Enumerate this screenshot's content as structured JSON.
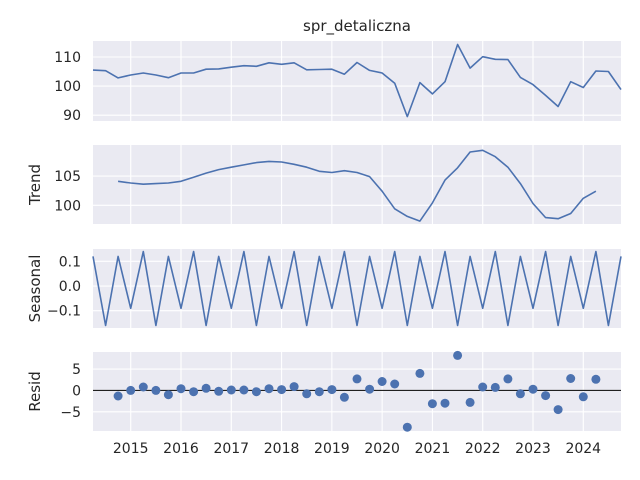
{
  "chart_data": {
    "type": "line",
    "title": "spr_detaliczna",
    "x_tick_labels": [
      "2015",
      "2016",
      "2017",
      "2018",
      "2019",
      "2020",
      "2021",
      "2022",
      "2023",
      "2024"
    ],
    "x_ticks": [
      2015,
      2016,
      2017,
      2018,
      2019,
      2020,
      2021,
      2022,
      2023,
      2024
    ],
    "xlim": [
      2014.25,
      2024.75
    ],
    "x": [
      2014.25,
      2014.5,
      2014.75,
      2015.0,
      2015.25,
      2015.5,
      2015.75,
      2016.0,
      2016.25,
      2016.5,
      2016.75,
      2017.0,
      2017.25,
      2017.5,
      2017.75,
      2018.0,
      2018.25,
      2018.5,
      2018.75,
      2019.0,
      2019.25,
      2019.5,
      2019.75,
      2020.0,
      2020.25,
      2020.5,
      2020.75,
      2021.0,
      2021.25,
      2021.5,
      2021.75,
      2022.0,
      2022.25,
      2022.5,
      2022.75,
      2023.0,
      2023.25,
      2023.5,
      2023.75,
      2024.0,
      2024.25,
      2024.5,
      2024.75
    ],
    "panels": [
      {
        "name": "observed",
        "ylabel": "",
        "kind": "line",
        "ylim": [
          88,
          115.5
        ],
        "yticks": [
          90,
          100,
          110
        ],
        "values": [
          105.5,
          105.3,
          102.8,
          103.8,
          104.5,
          103.8,
          102.9,
          104.5,
          104.5,
          105.8,
          105.9,
          106.5,
          107.0,
          106.8,
          108.0,
          107.5,
          108.0,
          105.6,
          105.7,
          105.8,
          104.1,
          108.1,
          105.4,
          104.5,
          101.0,
          89.5,
          101.2,
          97.3,
          101.5,
          114.3,
          106.2,
          110.1,
          109.2,
          109.1,
          103.0,
          100.5,
          96.8,
          93.0,
          101.5,
          99.5,
          105.2,
          105.0,
          98.8
        ]
      },
      {
        "name": "trend",
        "ylabel": "Trend",
        "kind": "line",
        "ylim": [
          96.8,
          110.3
        ],
        "yticks": [
          100,
          105
        ],
        "values": [
          null,
          null,
          104.1,
          103.8,
          103.6,
          103.7,
          103.8,
          104.1,
          104.8,
          105.5,
          106.1,
          106.5,
          106.9,
          107.3,
          107.5,
          107.4,
          107.0,
          106.5,
          105.8,
          105.6,
          105.9,
          105.6,
          104.9,
          102.4,
          99.4,
          98.1,
          97.3,
          100.4,
          104.3,
          106.4,
          109.1,
          109.4,
          108.3,
          106.5,
          103.7,
          100.3,
          97.9,
          97.7,
          98.6,
          101.2,
          102.4,
          null,
          null
        ]
      },
      {
        "name": "seasonal",
        "ylabel": "Seasonal",
        "kind": "line",
        "ylim": [
          -0.17,
          0.15
        ],
        "yticks": [
          -0.1,
          0.0,
          0.1
        ],
        "tick_labels": [
          "−0.1",
          "0.0",
          "0.1"
        ],
        "values": [
          0.12,
          -0.16,
          0.12,
          -0.09,
          0.14,
          -0.16,
          0.12,
          -0.09,
          0.14,
          -0.16,
          0.12,
          -0.09,
          0.14,
          -0.16,
          0.12,
          -0.09,
          0.14,
          -0.16,
          0.12,
          -0.09,
          0.14,
          -0.16,
          0.12,
          -0.09,
          0.14,
          -0.16,
          0.12,
          -0.09,
          0.14,
          -0.16,
          0.12,
          -0.09,
          0.14,
          -0.16,
          0.12,
          -0.09,
          0.14,
          -0.16,
          0.12,
          -0.09,
          0.14,
          -0.16,
          0.12
        ]
      },
      {
        "name": "resid",
        "ylabel": "Resid",
        "kind": "scatter",
        "ylim": [
          -9.5,
          9.0
        ],
        "yticks": [
          -5,
          0,
          5
        ],
        "tick_labels": [
          "−5",
          "0",
          "5"
        ],
        "baseline": 0,
        "values": [
          null,
          null,
          -1.3,
          0.0,
          0.8,
          0.0,
          -1.0,
          0.4,
          -0.3,
          0.5,
          -0.2,
          0.1,
          0.1,
          -0.3,
          0.4,
          0.2,
          0.9,
          -0.8,
          -0.3,
          0.2,
          -1.6,
          2.7,
          0.3,
          2.1,
          1.5,
          -8.6,
          4.0,
          -3.1,
          -3.0,
          8.2,
          -2.8,
          0.8,
          0.7,
          2.7,
          -0.8,
          0.3,
          -1.2,
          -4.5,
          2.8,
          -1.5,
          2.6,
          null,
          null
        ]
      }
    ],
    "grid": true
  }
}
